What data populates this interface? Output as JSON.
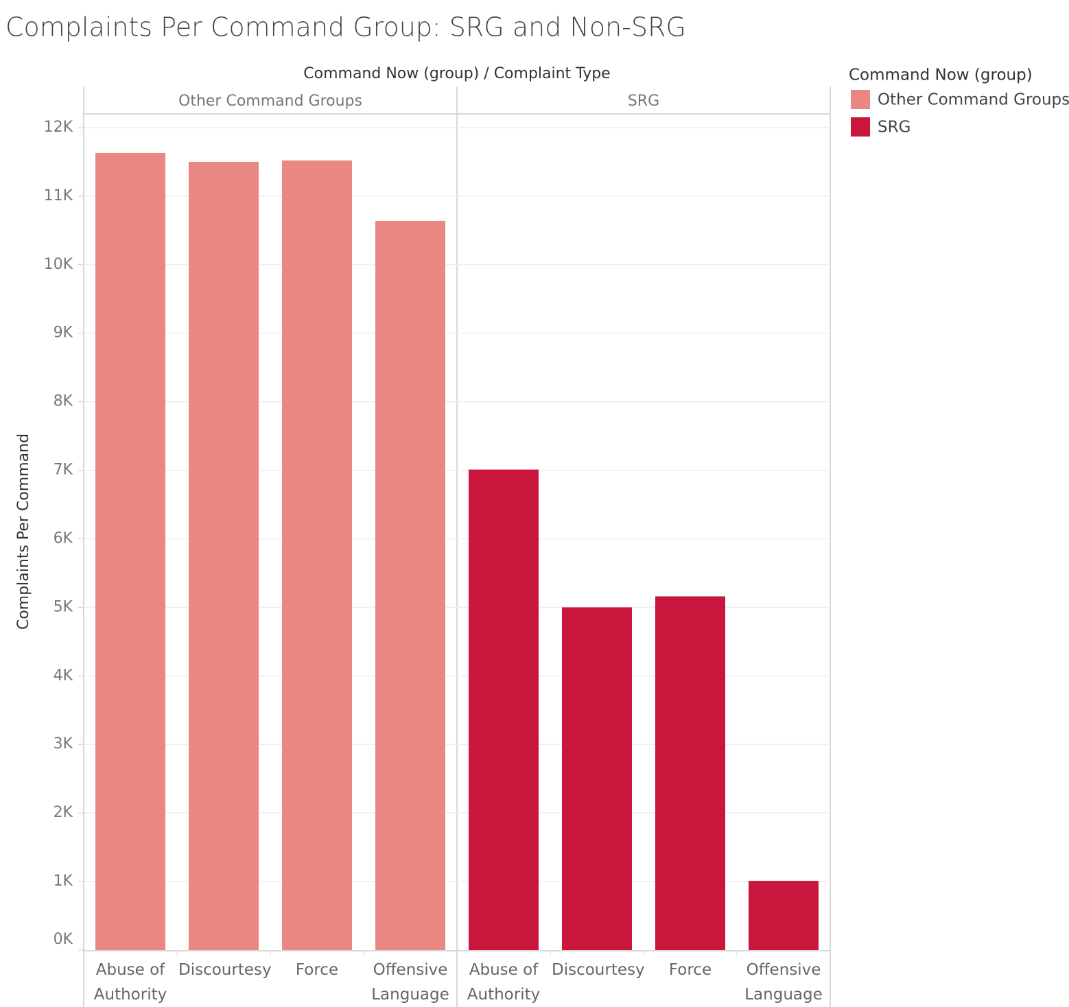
{
  "chart_data": {
    "type": "bar",
    "title": "Complaints Per Command Group: SRG and Non-SRG",
    "x_header": "Command Now (group)  /  Complaint Type",
    "y_label": "Complaints Per Command",
    "legend_title": "Command Now (group)",
    "categories": [
      "Abuse of Authority",
      "Discourtesy",
      "Force",
      "Offensive Language"
    ],
    "series": [
      {
        "name": "Other Command Groups",
        "color": "#e98883",
        "values": [
          11630,
          11500,
          11520,
          10640
        ]
      },
      {
        "name": "SRG",
        "color": "#c8163c",
        "values": [
          7010,
          5000,
          5160,
          1010
        ]
      }
    ],
    "ylim": [
      0,
      12200
    ],
    "yticks": [
      {
        "value": 0,
        "label": "0K"
      },
      {
        "value": 1000,
        "label": "1K"
      },
      {
        "value": 2000,
        "label": "2K"
      },
      {
        "value": 3000,
        "label": "3K"
      },
      {
        "value": 4000,
        "label": "4K"
      },
      {
        "value": 5000,
        "label": "5K"
      },
      {
        "value": 6000,
        "label": "6K"
      },
      {
        "value": 7000,
        "label": "7K"
      },
      {
        "value": 8000,
        "label": "8K"
      },
      {
        "value": 9000,
        "label": "9K"
      },
      {
        "value": 10000,
        "label": "10K"
      },
      {
        "value": 11000,
        "label": "11K"
      },
      {
        "value": 12000,
        "label": "12K"
      }
    ],
    "grid": true
  }
}
